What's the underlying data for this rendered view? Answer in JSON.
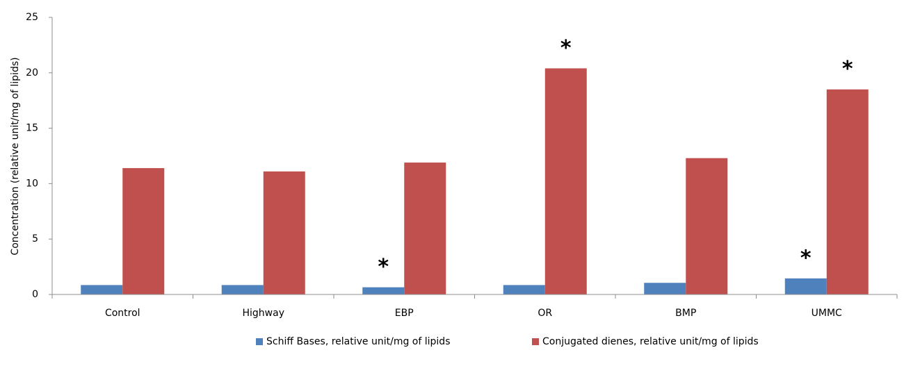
{
  "chart_data": {
    "type": "bar",
    "y_label": "Concentration (relative unit/mg of lipids)",
    "categories": [
      "Control",
      "Highway",
      "EBP",
      "OR",
      "BMP",
      "UMMC"
    ],
    "series": [
      {
        "name": "Schiff Bases, relative unit/mg of lipids",
        "color": "#4f81bd",
        "values": [
          0.85,
          0.85,
          0.65,
          0.85,
          1.05,
          1.45
        ]
      },
      {
        "name": "Conjugated dienes, relative unit/mg of lipids",
        "color": "#c0504d",
        "values": [
          11.4,
          11.1,
          11.9,
          20.4,
          12.3,
          18.5
        ]
      }
    ],
    "annotations": [
      {
        "text": "*",
        "series": 0,
        "category": 2
      },
      {
        "text": "*",
        "series": 1,
        "category": 3
      },
      {
        "text": "*",
        "series": 0,
        "category": 5
      },
      {
        "text": "*",
        "series": 1,
        "category": 5
      }
    ],
    "ylim": [
      0,
      25
    ],
    "yticks": [
      0,
      5,
      10,
      15,
      20,
      25
    ],
    "grid": false,
    "legend": "bottom"
  }
}
